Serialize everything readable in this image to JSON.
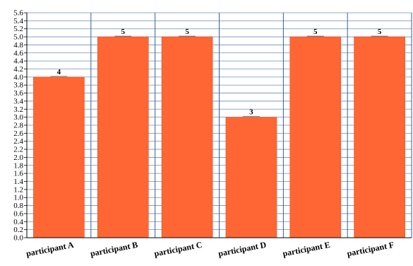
{
  "chart_data": {
    "type": "bar",
    "title": "",
    "xlabel": "",
    "ylabel": "",
    "categories": [
      "participant A",
      "participant B",
      "participant C",
      "participant D",
      "participant E",
      "participant F"
    ],
    "values": [
      4,
      5,
      5,
      3,
      5,
      5
    ],
    "data_labels": [
      "4",
      "5",
      "5",
      "3",
      "5",
      "5"
    ],
    "ylim": [
      0,
      5.6
    ],
    "ytick_step": 0.2,
    "yticks": [
      "0.0",
      "0.2",
      "0.4",
      "0.6",
      "0.8",
      "1.0",
      "1.2",
      "1.4",
      "1.6",
      "1.8",
      "2.0",
      "2.2",
      "2.4",
      "2.6",
      "2.8",
      "3.0",
      "3.2",
      "3.4",
      "3.6",
      "3.8",
      "4.0",
      "4.2",
      "4.4",
      "4.6",
      "4.8",
      "5.0",
      "5.2",
      "5.4",
      "5.6"
    ],
    "grid": true,
    "legend": "none",
    "colors": {
      "bar": "#ff6633",
      "bar_edge": "#d94f20",
      "grid_horizontal": "#6f8fbf",
      "grid_vertical": "#1f4f8f",
      "axis": "#000000"
    }
  }
}
